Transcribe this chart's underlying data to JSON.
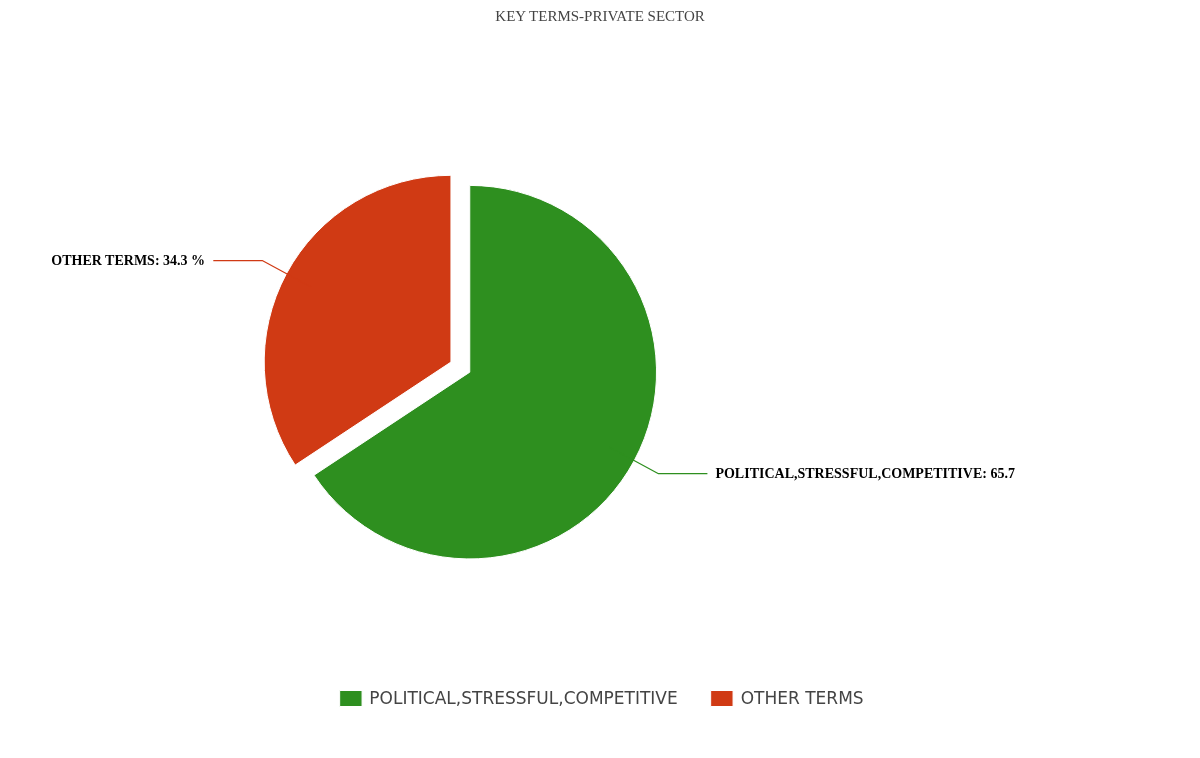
{
  "chart_data": {
    "type": "pie",
    "title": "KEY TERMS-PRIVATE SECTOR",
    "categories": [
      "POLITICAL,STRESSFUL,COMPETITIVE",
      "OTHER TERMS"
    ],
    "values": [
      65.7,
      34.3
    ],
    "colors": [
      "#2e8f1f",
      "#d03a14"
    ],
    "value_labels": [
      "POLITICAL,STRESSFUL,COMPETITIVE: 65.7",
      "OTHER TERMS: 34.3 %"
    ],
    "legend": "bottom"
  }
}
